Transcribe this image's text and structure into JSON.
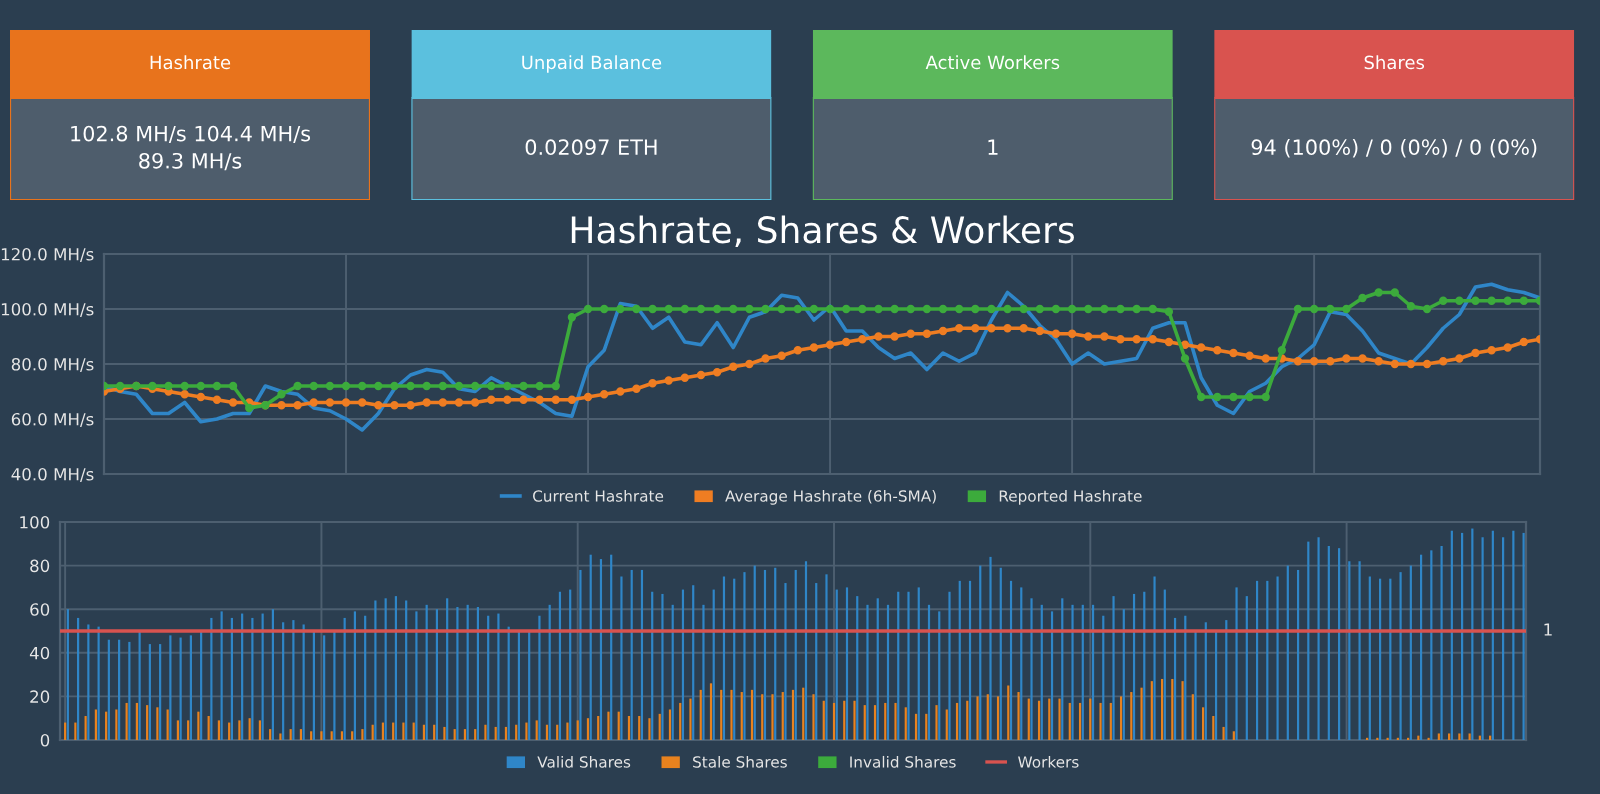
{
  "chart_data": [
    {
      "type": "other",
      "title": "Hashrate",
      "annotations": [
        "102.8 MH/s 104.4 MH/s",
        "89.3 MH/s"
      ],
      "color": "#e8731c"
    },
    {
      "type": "other",
      "title": "Unpaid Balance",
      "annotations": [
        "0.02097 ETH"
      ],
      "color": "#5bc0de"
    },
    {
      "type": "other",
      "title": "Active Workers",
      "annotations": [
        "1"
      ],
      "color": "#5cb85c"
    },
    {
      "type": "other",
      "title": "Shares",
      "annotations": [
        "94 (100%) / 0 (0%) / 0 (0%)"
      ],
      "color": "#d9534f"
    },
    {
      "type": "line",
      "title": "Hashrate, Shares & Workers",
      "categories": [
        null,
        null,
        null,
        null,
        null,
        null,
        null,
        null,
        null,
        null,
        null,
        null,
        null,
        null,
        null,
        null,
        null,
        null,
        null,
        null,
        null,
        null,
        null,
        null,
        null,
        null,
        null,
        null,
        null,
        null,
        null,
        null,
        null,
        null,
        null,
        null,
        null,
        null,
        null,
        null,
        null,
        null,
        null,
        null,
        null,
        null,
        null,
        null,
        null,
        null,
        null,
        null,
        null,
        null,
        null,
        null,
        null,
        null,
        null,
        null,
        null,
        null,
        null,
        null,
        null,
        null,
        null,
        null,
        null,
        null,
        null,
        null,
        null,
        null,
        null,
        null,
        null,
        null,
        null,
        null,
        null,
        null,
        null,
        null,
        null,
        null,
        null,
        null,
        null,
        null
      ],
      "ylim": [
        40,
        120
      ],
      "yticks": [
        {
          "value": 40,
          "label": "40.0 MH/s"
        },
        {
          "value": 60,
          "label": "60.0 MH/s"
        },
        {
          "value": 80,
          "label": "80.0 MH/s"
        },
        {
          "value": 100,
          "label": "100.0 MH/s"
        },
        {
          "value": 120,
          "label": "120.0 MH/s"
        }
      ],
      "grid": true,
      "legend": "bottom",
      "tick_labels": "y",
      "series": [
        {
          "name": "Current Hashrate",
          "color": "#2f86c8",
          "marker": "none",
          "values": [
            72,
            70,
            69,
            62,
            62,
            66,
            59,
            60,
            62,
            62,
            72,
            70,
            69,
            64,
            63,
            60,
            56,
            62,
            71,
            76,
            78,
            77,
            71,
            70,
            75,
            72,
            69,
            66,
            62,
            61,
            79,
            85,
            102,
            101,
            93,
            97,
            88,
            87,
            95,
            86,
            97,
            99,
            105,
            104,
            96,
            101,
            92,
            92,
            86,
            82,
            84,
            78,
            84,
            81,
            84,
            96,
            106,
            101,
            94,
            89,
            80,
            84,
            80,
            81,
            82,
            93,
            95,
            95,
            75,
            65,
            62,
            70,
            73,
            79,
            82,
            87,
            99,
            98,
            92,
            84,
            82,
            80,
            86,
            93,
            98,
            108,
            109,
            107,
            106,
            104
          ]
        },
        {
          "name": "Average Hashrate (6h-SMA)",
          "color": "#ef7d22",
          "marker": "circle",
          "values": [
            70,
            71,
            72,
            71,
            70,
            69,
            68,
            67,
            66,
            66,
            65,
            65,
            65,
            66,
            66,
            66,
            66,
            65,
            65,
            65,
            66,
            66,
            66,
            66,
            67,
            67,
            67,
            67,
            67,
            67,
            68,
            69,
            70,
            71,
            73,
            74,
            75,
            76,
            77,
            79,
            80,
            82,
            83,
            85,
            86,
            87,
            88,
            89,
            90,
            90,
            91,
            91,
            92,
            93,
            93,
            93,
            93,
            93,
            92,
            91,
            91,
            90,
            90,
            89,
            89,
            89,
            88,
            87,
            86,
            85,
            84,
            83,
            82,
            82,
            81,
            81,
            81,
            82,
            82,
            81,
            80,
            80,
            80,
            81,
            82,
            84,
            85,
            86,
            88,
            89
          ]
        },
        {
          "name": "Reported Hashrate",
          "color": "#3cab3c",
          "marker": "circle",
          "values": [
            72,
            72,
            72,
            72,
            72,
            72,
            72,
            72,
            72,
            64,
            65,
            69,
            72,
            72,
            72,
            72,
            72,
            72,
            72,
            72,
            72,
            72,
            72,
            72,
            72,
            72,
            72,
            72,
            72,
            97,
            100,
            100,
            100,
            100,
            100,
            100,
            100,
            100,
            100,
            100,
            100,
            100,
            100,
            100,
            100,
            100,
            100,
            100,
            100,
            100,
            100,
            100,
            100,
            100,
            100,
            100,
            100,
            100,
            100,
            100,
            100,
            100,
            100,
            100,
            100,
            100,
            99,
            82,
            68,
            68,
            68,
            68,
            68,
            85,
            100,
            100,
            100,
            100,
            104,
            106,
            106,
            101,
            100,
            103,
            103,
            103,
            103,
            103,
            103,
            103
          ]
        }
      ]
    },
    {
      "type": "bar",
      "categories": [
        null,
        null,
        null,
        null,
        null,
        null,
        null,
        null,
        null,
        null,
        null,
        null,
        null,
        null,
        null,
        null,
        null,
        null,
        null,
        null,
        null,
        null,
        null,
        null,
        null,
        null,
        null,
        null,
        null,
        null,
        null,
        null,
        null,
        null,
        null,
        null,
        null,
        null,
        null,
        null,
        null,
        null,
        null,
        null,
        null,
        null,
        null,
        null,
        null,
        null,
        null,
        null,
        null,
        null,
        null,
        null,
        null,
        null,
        null,
        null,
        null,
        null,
        null,
        null,
        null,
        null,
        null,
        null,
        null,
        null,
        null,
        null,
        null,
        null,
        null,
        null,
        null,
        null,
        null,
        null,
        null,
        null,
        null,
        null,
        null,
        null,
        null,
        null,
        null,
        null,
        null,
        null,
        null,
        null,
        null,
        null,
        null,
        null,
        null,
        null,
        null,
        null,
        null,
        null,
        null,
        null,
        null,
        null,
        null,
        null,
        null,
        null,
        null,
        null,
        null,
        null,
        null,
        null,
        null,
        null,
        null,
        null,
        null,
        null,
        null,
        null,
        null,
        null,
        null,
        null,
        null,
        null,
        null,
        null,
        null,
        null,
        null,
        null,
        null,
        null,
        null,
        null,
        null
      ],
      "ylim": [
        0,
        100
      ],
      "yticks": [
        0,
        20,
        40,
        60,
        80,
        100
      ],
      "annotations": [
        "1"
      ],
      "ref_lines": [
        {
          "axis": "y",
          "value": 50,
          "label": "Workers",
          "color": "#d9534f"
        }
      ],
      "grid": true,
      "legend": "bottom",
      "tick_labels": "y",
      "series": [
        {
          "name": "Valid Shares",
          "color": "#2f86c8",
          "values": [
            60,
            56,
            53,
            52,
            46,
            46,
            45,
            50,
            44,
            44,
            48,
            47,
            48,
            50,
            56,
            59,
            56,
            58,
            56,
            58,
            60,
            54,
            55,
            53,
            50,
            48,
            50,
            56,
            59,
            57,
            64,
            65,
            66,
            64,
            59,
            62,
            60,
            65,
            61,
            62,
            61,
            57,
            58,
            52,
            50,
            50,
            57,
            62,
            68,
            69,
            78,
            85,
            83,
            85,
            75,
            78,
            78,
            68,
            67,
            62,
            69,
            71,
            62,
            69,
            75,
            74,
            77,
            80,
            78,
            79,
            72,
            78,
            82,
            72,
            76,
            69,
            70,
            66,
            62,
            65,
            62,
            68,
            68,
            70,
            62,
            59,
            68,
            73,
            73,
            80,
            84,
            79,
            73,
            70,
            65,
            62,
            59,
            65,
            62,
            62,
            62,
            57,
            66,
            60,
            67,
            68,
            75,
            69,
            56,
            57,
            50,
            54,
            50,
            55,
            70,
            66,
            73,
            73,
            75,
            80,
            78,
            91,
            93,
            89,
            88,
            82,
            82,
            75,
            74,
            74,
            77,
            80,
            85,
            87,
            89,
            96,
            95,
            97,
            93,
            96,
            93,
            96,
            95
          ]
        },
        {
          "name": "Stale Shares",
          "color": "#e8821e",
          "values": [
            8,
            8,
            11,
            14,
            13,
            14,
            17,
            17,
            16,
            15,
            14,
            9,
            9,
            13,
            11,
            9,
            8,
            9,
            10,
            9,
            5,
            3,
            5,
            5,
            4,
            4,
            4,
            4,
            4,
            5,
            7,
            8,
            8,
            8,
            8,
            7,
            7,
            6,
            5,
            5,
            5,
            7,
            6,
            6,
            7,
            8,
            9,
            7,
            7,
            8,
            9,
            10,
            11,
            13,
            13,
            11,
            11,
            10,
            12,
            14,
            17,
            19,
            23,
            26,
            23,
            23,
            22,
            23,
            21,
            21,
            22,
            23,
            24,
            21,
            18,
            17,
            18,
            18,
            16,
            16,
            17,
            17,
            15,
            12,
            12,
            16,
            14,
            17,
            18,
            20,
            21,
            20,
            25,
            22,
            19,
            18,
            19,
            19,
            17,
            17,
            19,
            17,
            17,
            20,
            22,
            24,
            27,
            28,
            28,
            27,
            21,
            15,
            11,
            6,
            4,
            0,
            0,
            0,
            0,
            0,
            0,
            0,
            0,
            0,
            0,
            0,
            0,
            1,
            1,
            1,
            1,
            1,
            2,
            1,
            3,
            3,
            3,
            3,
            2,
            2,
            0,
            0,
            0
          ]
        },
        {
          "name": "Invalid Shares",
          "color": "#3cab3c",
          "values": [
            0,
            0,
            0,
            0,
            0,
            0,
            0,
            0,
            0,
            0,
            0,
            0,
            0,
            0,
            0,
            0,
            0,
            0,
            0,
            0,
            0,
            0,
            0,
            0,
            0,
            0,
            0,
            0,
            0,
            0,
            0,
            0,
            0,
            0,
            0,
            0,
            0,
            0,
            0,
            0,
            0,
            0,
            0,
            0,
            0,
            0,
            0,
            0,
            0,
            0,
            0,
            0,
            0,
            0,
            0,
            0,
            0,
            0,
            0,
            0,
            0,
            0,
            0,
            0,
            0,
            0,
            0,
            0,
            0,
            0,
            0,
            0,
            0,
            0,
            0,
            0,
            0,
            0,
            0,
            0,
            0,
            0,
            0,
            0,
            0,
            0,
            0,
            0,
            0,
            0,
            0,
            0,
            0,
            0,
            0,
            0,
            0,
            0,
            0,
            0,
            0,
            0,
            0,
            0,
            0,
            0,
            0,
            0,
            0,
            0,
            0,
            0,
            0,
            0,
            0,
            0,
            0,
            0,
            0,
            0,
            0,
            0,
            0,
            0,
            0,
            0,
            0,
            0,
            0,
            0,
            0,
            0,
            0,
            0,
            0,
            0,
            0,
            0,
            0,
            0,
            0,
            0,
            0
          ]
        }
      ]
    }
  ]
}
